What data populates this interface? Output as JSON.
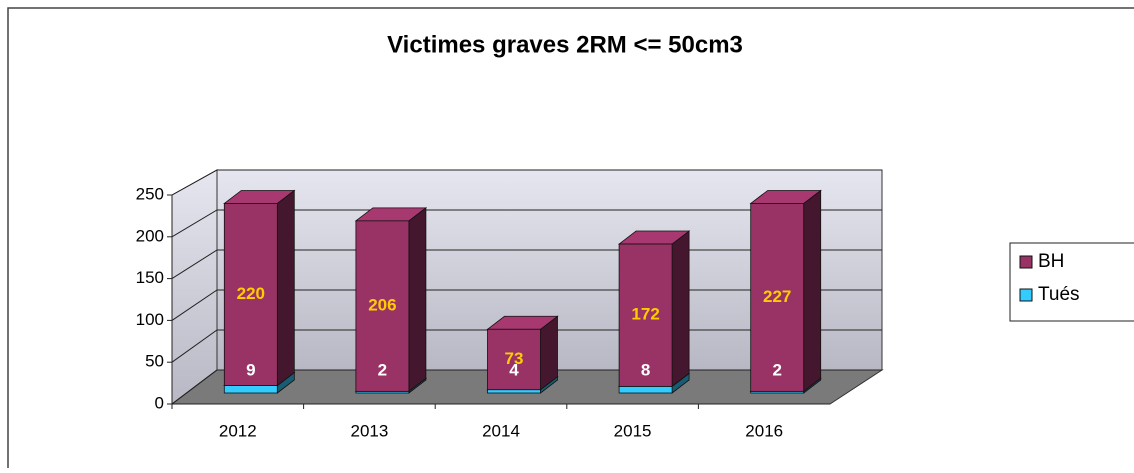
{
  "chart_data": {
    "type": "bar3d_stacked",
    "title": "Victimes graves 2RM <= 50cm3",
    "categories": [
      "2012",
      "2013",
      "2014",
      "2015",
      "2016"
    ],
    "series": [
      {
        "name": "BH",
        "color": "#993366",
        "values": [
          220,
          206,
          73,
          172,
          227
        ]
      },
      {
        "name": "Tués",
        "color": "#33ccff",
        "values": [
          9,
          2,
          4,
          8,
          2
        ]
      }
    ],
    "ylim": [
      0,
      250
    ],
    "yticks": [
      0,
      50,
      100,
      150,
      200,
      250
    ],
    "grid": true,
    "legend": "right"
  }
}
